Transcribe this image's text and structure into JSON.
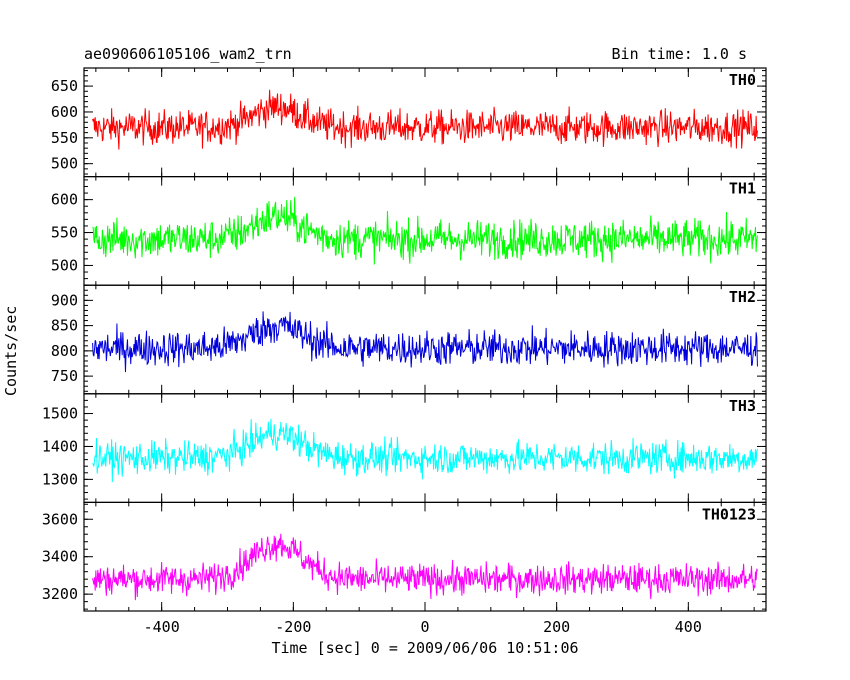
{
  "header": {
    "title": "ae090606105106_wam2_trn",
    "bin_time": "Bin time: 1.0 s"
  },
  "axes": {
    "xlabel": "Time [sec] 0 = 2009/06/06 10:51:06",
    "ylabel": "Counts/sec"
  },
  "chart_data": {
    "type": "line",
    "x_range": [
      -518,
      518
    ],
    "x_ticks": [
      -400,
      -200,
      0,
      200,
      400
    ],
    "bin_time_s": 1.0,
    "data_x_range": [
      -505,
      505
    ],
    "panels": [
      {
        "name": "TH0",
        "color": "#ff0000",
        "ylim": [
          475,
          685
        ],
        "yticks": [
          500,
          550,
          600,
          650
        ],
        "baseline": 570,
        "peak": {
          "center": -225,
          "width": 50,
          "amplitude": 40
        },
        "noise": 30,
        "series_rough": [
          [
            -500,
            575
          ],
          [
            -400,
            575
          ],
          [
            -300,
            585
          ],
          [
            -225,
            610
          ],
          [
            -150,
            585
          ],
          [
            -100,
            570
          ],
          [
            0,
            565
          ],
          [
            200,
            570
          ],
          [
            400,
            570
          ],
          [
            500,
            570
          ]
        ]
      },
      {
        "name": "TH1",
        "color": "#00ff00",
        "ylim": [
          470,
          635
        ],
        "yticks": [
          500,
          550,
          600
        ],
        "baseline": 540,
        "peak": {
          "center": -225,
          "width": 50,
          "amplitude": 35
        },
        "noise": 27,
        "series_rough": [
          [
            -500,
            540
          ],
          [
            -400,
            540
          ],
          [
            -300,
            550
          ],
          [
            -225,
            575
          ],
          [
            -150,
            550
          ],
          [
            -100,
            545
          ],
          [
            0,
            540
          ],
          [
            200,
            540
          ],
          [
            400,
            540
          ],
          [
            500,
            540
          ]
        ]
      },
      {
        "name": "TH2",
        "color": "#0000dd",
        "ylim": [
          715,
          930
        ],
        "yticks": [
          750,
          800,
          850,
          900
        ],
        "baseline": 805,
        "peak": {
          "center": -225,
          "width": 55,
          "amplitude": 45
        },
        "noise": 32,
        "series_rough": [
          [
            -500,
            805
          ],
          [
            -400,
            810
          ],
          [
            -300,
            820
          ],
          [
            -225,
            850
          ],
          [
            -150,
            825
          ],
          [
            -100,
            810
          ],
          [
            0,
            805
          ],
          [
            200,
            810
          ],
          [
            400,
            810
          ],
          [
            500,
            810
          ]
        ]
      },
      {
        "name": "TH3",
        "color": "#00ffff",
        "ylim": [
          1230,
          1560
        ],
        "yticks": [
          1300,
          1400,
          1500
        ],
        "baseline": 1365,
        "peak": {
          "center": -225,
          "width": 55,
          "amplitude": 75
        },
        "noise": 45,
        "series_rough": [
          [
            -500,
            1365
          ],
          [
            -400,
            1370
          ],
          [
            -300,
            1395
          ],
          [
            -225,
            1440
          ],
          [
            -150,
            1395
          ],
          [
            -100,
            1375
          ],
          [
            0,
            1370
          ],
          [
            200,
            1370
          ],
          [
            400,
            1370
          ],
          [
            500,
            1370
          ]
        ]
      },
      {
        "name": "TH0123",
        "color": "#ff00ff",
        "ylim": [
          3110,
          3690
        ],
        "yticks": [
          3200,
          3400,
          3600
        ],
        "baseline": 3280,
        "peak": {
          "center": -225,
          "width": 55,
          "amplitude": 190
        },
        "noise": 75,
        "series_rough": [
          [
            -500,
            3280
          ],
          [
            -400,
            3285
          ],
          [
            -300,
            3340
          ],
          [
            -225,
            3470
          ],
          [
            -150,
            3360
          ],
          [
            -100,
            3300
          ],
          [
            0,
            3280
          ],
          [
            200,
            3285
          ],
          [
            400,
            3290
          ],
          [
            500,
            3285
          ]
        ]
      }
    ]
  }
}
